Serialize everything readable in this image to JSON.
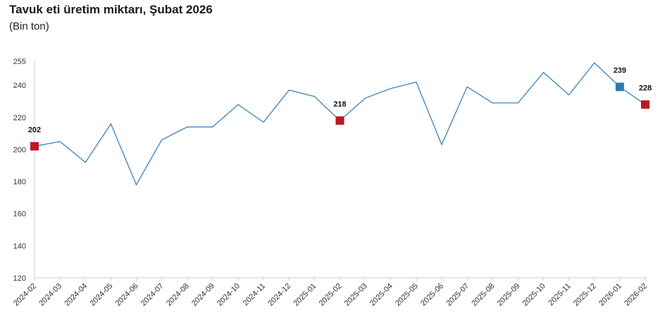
{
  "title": "Tavuk eti üretim miktarı, Şubat 2026",
  "subtitle": "(Bin ton)",
  "chart_data": {
    "type": "line",
    "title": "Tavuk eti üretim miktarı, Şubat 2026",
    "subtitle": "(Bin ton)",
    "xlabel": "",
    "ylabel": "",
    "ylim": [
      120,
      255
    ],
    "yticks": [
      120,
      140,
      160,
      180,
      200,
      220,
      240,
      255
    ],
    "grid": false,
    "categories": [
      "2024-02",
      "2024-03",
      "2024-04",
      "2024-05",
      "2024-06",
      "2024-07",
      "2024-08",
      "2024-09",
      "2024-10",
      "2024-11",
      "2024-12",
      "2025-01",
      "2025-02",
      "2025-03",
      "2025-04",
      "2025-05",
      "2025-06",
      "2025-07",
      "2025-08",
      "2025-09",
      "2025-10",
      "2025-11",
      "2025-12",
      "2026-01",
      "2026-02"
    ],
    "series": [
      {
        "values": [
          202,
          205,
          192,
          216,
          178,
          206,
          214,
          214,
          228,
          217,
          237,
          233,
          218,
          232,
          238,
          242,
          203,
          239,
          229,
          229,
          248,
          234,
          254,
          239,
          228
        ],
        "color": "#2e79b5"
      }
    ],
    "highlights": [
      {
        "category": "2024-02",
        "value": 202,
        "label": "202",
        "color": "#c0161f"
      },
      {
        "category": "2025-02",
        "value": 218,
        "label": "218",
        "color": "#c0161f"
      },
      {
        "category": "2026-01",
        "value": 239,
        "label": "239",
        "color": "#2e79b5"
      },
      {
        "category": "2026-02",
        "value": 228,
        "label": "228",
        "color": "#c0161f"
      }
    ],
    "axis_color": "#cccccc"
  }
}
